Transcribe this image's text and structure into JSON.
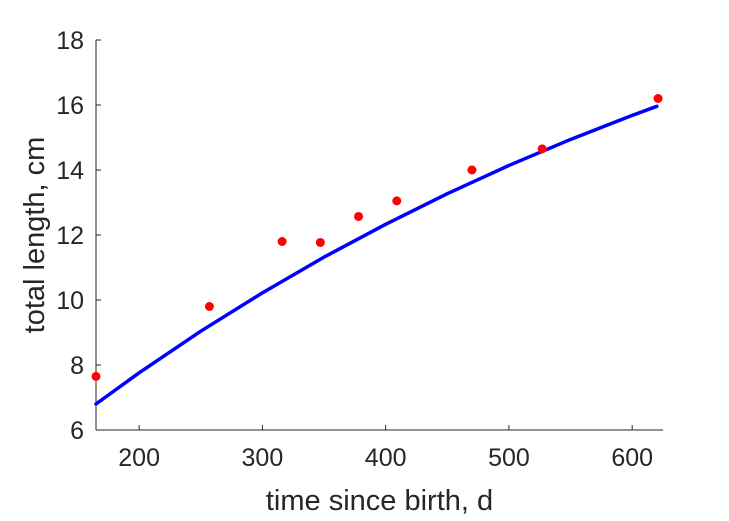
{
  "chart_data": {
    "type": "scatter",
    "xlabel": "time since birth, d",
    "ylabel": "total length, cm",
    "xlim": [
      165,
      625
    ],
    "ylim": [
      6,
      18
    ],
    "xticks": [
      200,
      300,
      400,
      500,
      600
    ],
    "yticks": [
      6,
      8,
      10,
      12,
      14,
      16,
      18
    ],
    "grid": false,
    "series": [
      {
        "type": "scatter",
        "color": "#ff0000",
        "points": [
          [
            165,
            7.65
          ],
          [
            257,
            9.8
          ],
          [
            316,
            11.8
          ],
          [
            347,
            11.77
          ],
          [
            378,
            12.57
          ],
          [
            409,
            13.05
          ],
          [
            470,
            14.0
          ],
          [
            527,
            14.65
          ],
          [
            621,
            16.2
          ]
        ]
      },
      {
        "type": "line",
        "color": "#0000ff",
        "points": [
          [
            165,
            6.8
          ],
          [
            200,
            7.76
          ],
          [
            250,
            9.04
          ],
          [
            300,
            10.22
          ],
          [
            350,
            11.32
          ],
          [
            400,
            12.33
          ],
          [
            450,
            13.27
          ],
          [
            500,
            14.14
          ],
          [
            550,
            14.94
          ],
          [
            600,
            15.68
          ],
          [
            620,
            15.96
          ]
        ]
      }
    ]
  }
}
